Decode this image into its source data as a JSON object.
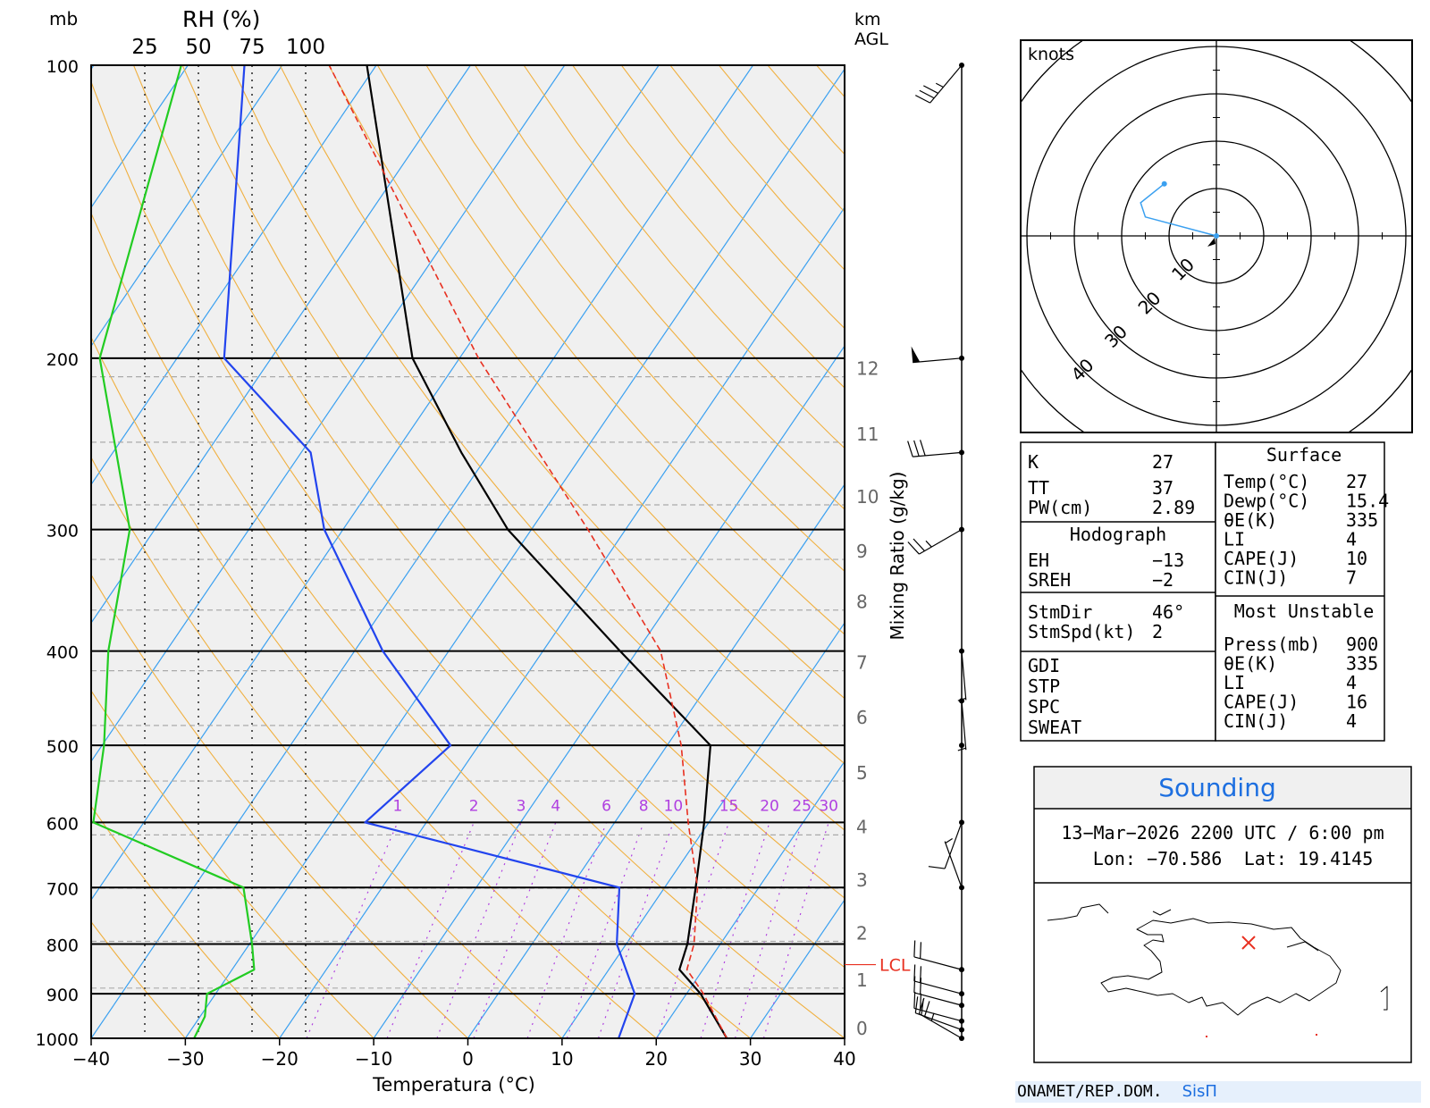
{
  "chart_data": {
    "type": "skew-t",
    "left_axis_label": "mb",
    "rh_label": "RH (%)",
    "rh_ticks": [
      "25",
      "50",
      "75",
      "100"
    ],
    "right_axis_label_top": "km",
    "right_axis_label_bottom": "AGL",
    "xlabel": "Temperatura (°C)",
    "mixing_label": "Mixing Ratio (g/kg)",
    "lcl_label": "LCL",
    "pressure_ticks": [
      "100",
      "200",
      "300",
      "400",
      "500",
      "600",
      "700",
      "800",
      "900",
      "1000"
    ],
    "temp_ticks": [
      "−40",
      "−30",
      "−20",
      "−10",
      "0",
      "10",
      "20",
      "30",
      "40"
    ],
    "xlim": [
      -40,
      40
    ],
    "plim": [
      1000,
      100
    ],
    "height_ticks_km": [
      "0",
      "1",
      "2",
      "3",
      "4",
      "5",
      "6",
      "7",
      "8",
      "9",
      "10",
      "11",
      "12"
    ],
    "height_pressures_mb": [
      1000,
      888,
      795,
      701,
      618,
      544,
      477,
      419,
      363,
      322,
      283,
      244,
      209
    ],
    "mixing_ratio_labels": [
      "1",
      "2",
      "3",
      "4",
      "6",
      "8",
      "10",
      "15",
      "20",
      "25",
      "30"
    ],
    "lcl_pressure_mb": 840,
    "series": [
      {
        "name": "temperature",
        "color": "#000000",
        "points": [
          [
            1000,
            27.5
          ],
          [
            900,
            21.5
          ],
          [
            850,
            17.5
          ],
          [
            800,
            16.5
          ],
          [
            700,
            13.3
          ],
          [
            600,
            9.5
          ],
          [
            500,
            4.6
          ],
          [
            400,
            -11.8
          ],
          [
            300,
            -32.5
          ],
          [
            250,
            -43
          ],
          [
            200,
            -55
          ],
          [
            100,
            -81
          ]
        ]
      },
      {
        "name": "dewpoint",
        "color": "#2244ee",
        "points": [
          [
            1000,
            16
          ],
          [
            900,
            14.5
          ],
          [
            800,
            9
          ],
          [
            700,
            5.2
          ],
          [
            600,
            -26.5
          ],
          [
            500,
            -23
          ],
          [
            400,
            -37
          ],
          [
            300,
            -52
          ],
          [
            250,
            -59
          ],
          [
            200,
            -75
          ],
          [
            100,
            -94
          ]
        ]
      },
      {
        "name": "parcel",
        "color": "#e83020",
        "dashed": true,
        "points": [
          [
            1000,
            27.5
          ],
          [
            900,
            21.8
          ],
          [
            850,
            18.3
          ],
          [
            800,
            17.2
          ],
          [
            700,
            13.5
          ],
          [
            600,
            7.8
          ],
          [
            500,
            1.5
          ],
          [
            400,
            -7.5
          ],
          [
            300,
            -24
          ],
          [
            200,
            -48
          ],
          [
            100,
            -85
          ]
        ]
      },
      {
        "name": "relative-humidity",
        "color": "#22cc22",
        "rh_points": [
          [
            1000,
            48
          ],
          [
            950,
            53
          ],
          [
            900,
            54
          ],
          [
            850,
            76
          ],
          [
            800,
            75
          ],
          [
            700,
            71
          ],
          [
            600,
            1
          ],
          [
            500,
            6
          ],
          [
            400,
            8
          ],
          [
            300,
            18
          ],
          [
            200,
            4
          ],
          [
            100,
            42
          ]
        ]
      }
    ],
    "wind_barbs": [
      {
        "p": 1000,
        "dir": 300,
        "kt": 25
      },
      {
        "p": 980,
        "dir": 290,
        "kt": 20
      },
      {
        "p": 960,
        "dir": 285,
        "kt": 20
      },
      {
        "p": 925,
        "dir": 285,
        "kt": 20
      },
      {
        "p": 900,
        "dir": 285,
        "kt": 20
      },
      {
        "p": 850,
        "dir": 285,
        "kt": 20
      },
      {
        "p": 700,
        "dir": 340,
        "kt": 5
      },
      {
        "p": 600,
        "dir": 200,
        "kt": 10
      },
      {
        "p": 500,
        "dir": 360,
        "kt": 0
      },
      {
        "p": 450,
        "dir": 175,
        "kt": 5
      },
      {
        "p": 400,
        "dir": 175,
        "kt": 5
      },
      {
        "p": 300,
        "dir": 240,
        "kt": 25
      },
      {
        "p": 250,
        "dir": 265,
        "kt": 30
      },
      {
        "p": 200,
        "dir": 265,
        "kt": 50
      },
      {
        "p": 100,
        "dir": 220,
        "kt": 35
      }
    ]
  },
  "hodograph": {
    "units_label": "knots",
    "ring_labels": [
      "10",
      "20",
      "30",
      "40"
    ],
    "trace_uv": [
      [
        0,
        0
      ],
      [
        -15,
        4
      ],
      [
        -16,
        7
      ],
      [
        -11,
        11
      ]
    ]
  },
  "indices": {
    "K": "27",
    "TT": "37",
    "PW(cm)": "2.89",
    "hodograph_header": "Hodograph",
    "EH": "−13",
    "SREH": "−2",
    "StmDir": "46°",
    "StmSpd(kt)": "2",
    "extra": [
      "GDI",
      "STP",
      "SPC",
      "SWEAT"
    ],
    "surface_header": "Surface",
    "surface": [
      [
        "Temp(°C)",
        "27"
      ],
      [
        "Dewp(°C)",
        "15.4"
      ],
      [
        "θE(K)",
        "335"
      ],
      [
        "LI",
        "4"
      ],
      [
        "CAPE(J)",
        "10"
      ],
      [
        "CIN(J)",
        "7"
      ]
    ],
    "mu_header": "Most Unstable",
    "most_unstable": [
      [
        "Press(mb)",
        "900"
      ],
      [
        "θE(K)",
        "335"
      ],
      [
        "LI",
        "4"
      ],
      [
        "CAPE(J)",
        "16"
      ],
      [
        "CIN(J)",
        "4"
      ]
    ]
  },
  "sounding": {
    "title": "Sounding",
    "datetime": "13−Mar−2026 2200 UTC / 6:00 pm",
    "lon": "Lon: −70.586",
    "lat": "Lat: 19.4145",
    "marker": "×"
  },
  "footer": {
    "org": "ONAMET/REP.DOM.",
    "sis": "SisΠ"
  },
  "colors": {
    "temperature": "#000000",
    "dewpoint": "#2244ee",
    "parcel": "#e83020",
    "rh": "#22cc22",
    "isotherm": "#3aa0f0",
    "dry_adiabat": "#f0b040",
    "mixing": "#b040e0",
    "title_blue": "#1d6fe0"
  }
}
